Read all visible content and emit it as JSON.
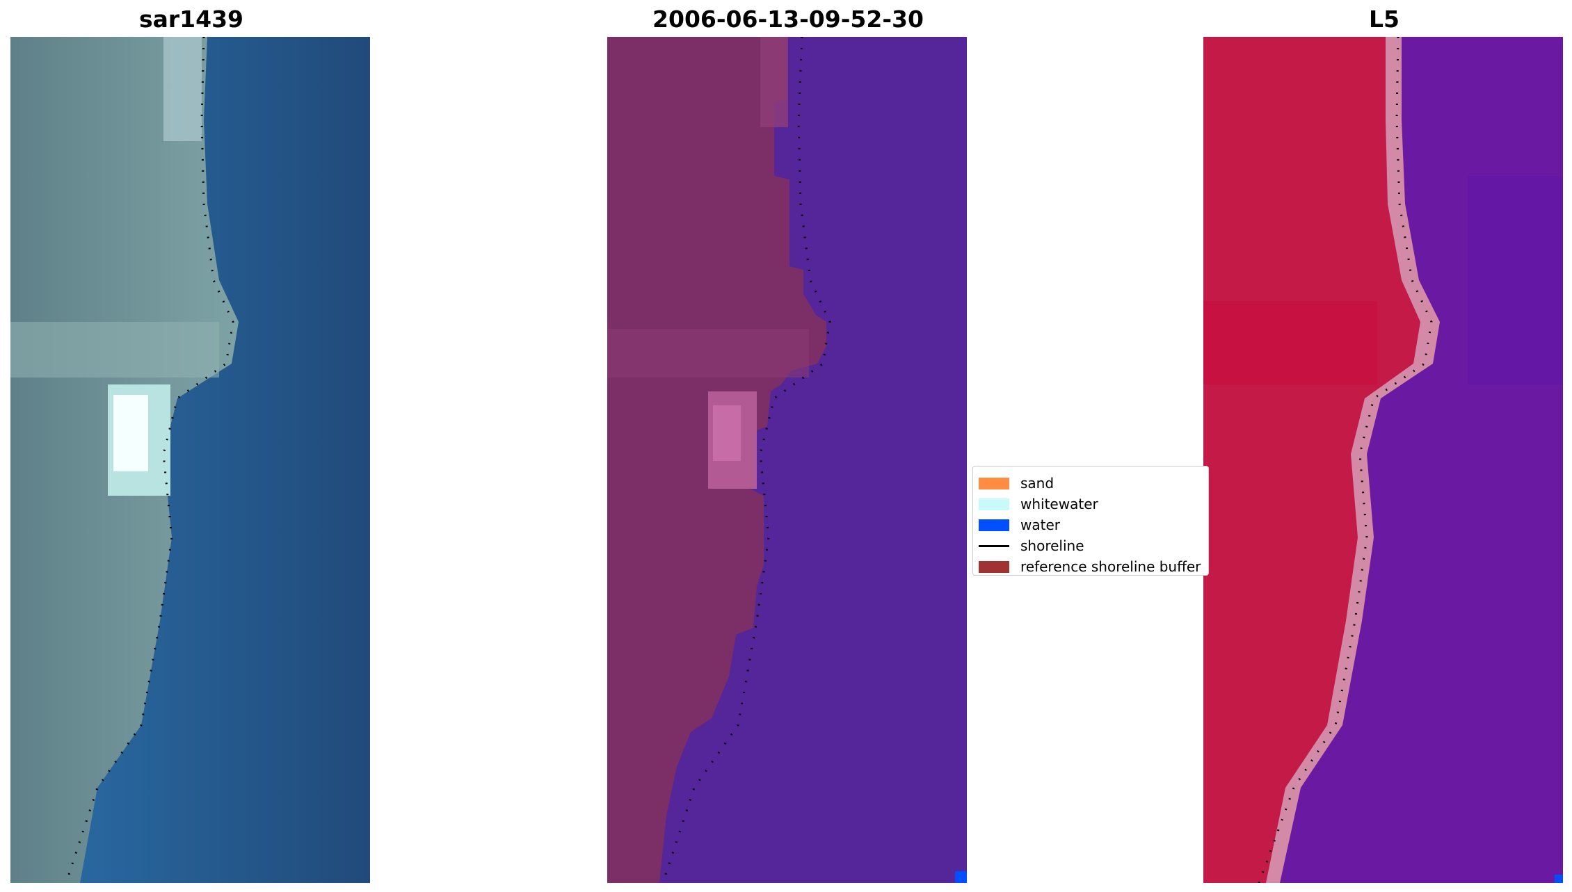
{
  "panels": [
    {
      "id": "rgb",
      "title": "sar1439"
    },
    {
      "id": "classified",
      "title": "2006-06-13-09-52-30"
    },
    {
      "id": "index",
      "title": "L5"
    }
  ],
  "legend": {
    "items": [
      {
        "label": "sand",
        "color": "#ff8c40",
        "kind": "patch"
      },
      {
        "label": "whitewater",
        "color": "#c8fafa",
        "kind": "patch"
      },
      {
        "label": "water",
        "color": "#0050ff",
        "kind": "patch"
      },
      {
        "label": "shoreline",
        "color": "#000000",
        "kind": "line"
      },
      {
        "label": "reference shoreline buffer",
        "color": "#a03232",
        "kind": "patch"
      }
    ]
  },
  "colors": {
    "rgb_land": "#6d8f96",
    "rgb_water": "#23609a",
    "rgb_whitewater": "#f5ffff",
    "class_land": "#7c2f66",
    "class_water": "#55259a",
    "index_land": "#c41a48",
    "index_water": "#6a1aa2",
    "index_edge": "#d38aa6"
  }
}
